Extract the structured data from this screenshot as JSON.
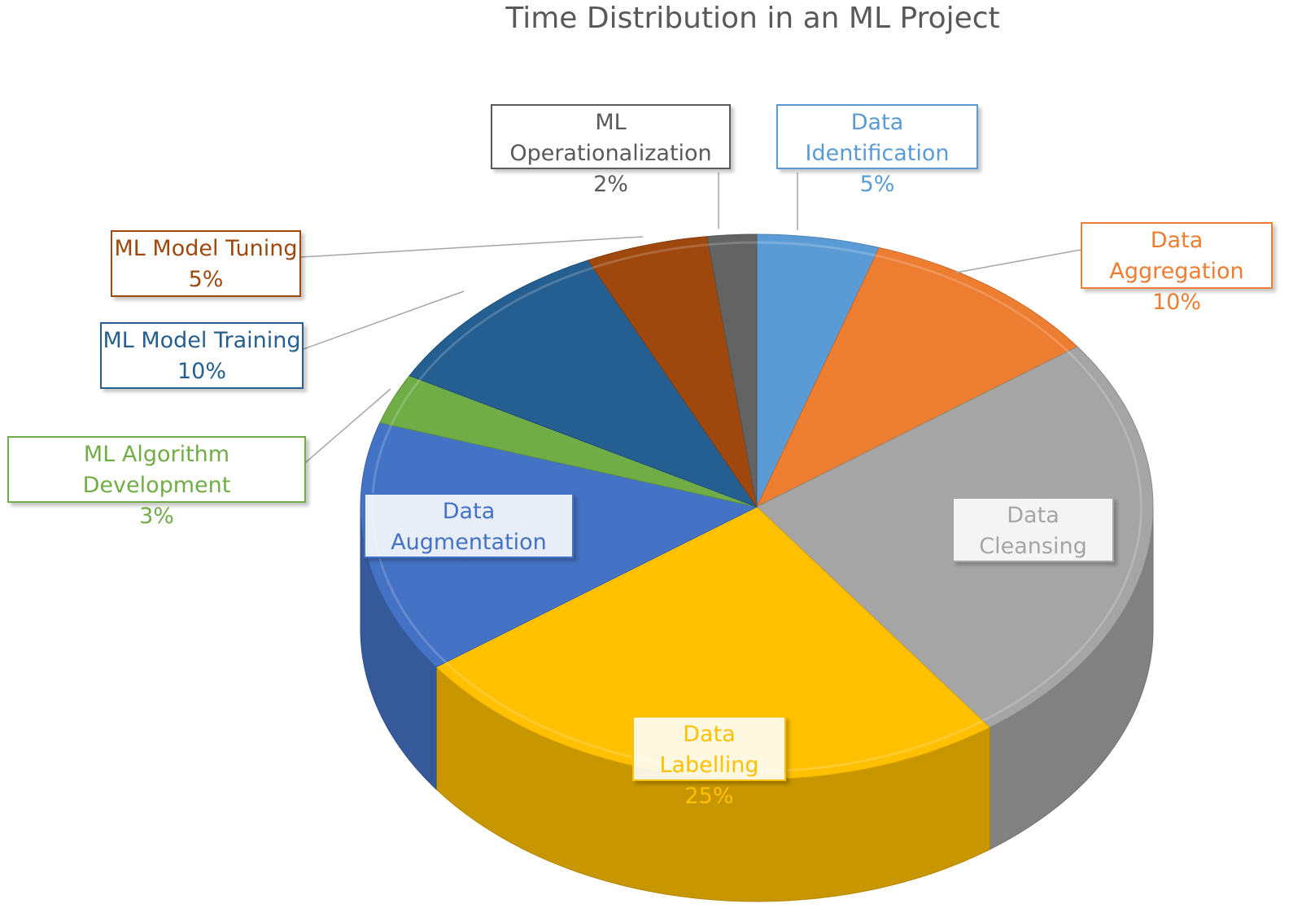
{
  "chart_data": {
    "type": "pie",
    "title": "Time Distribution in an ML Project",
    "slices": [
      {
        "name": "Data Identification",
        "value": 5,
        "label": "5%",
        "color": "#5b9bd5",
        "label_color": "#5b9bd5"
      },
      {
        "name": "Data Aggregation",
        "value": 10,
        "label": "10%",
        "color": "#ed7d31",
        "label_color": "#ed7d31"
      },
      {
        "name": "Data Cleansing",
        "value": 25,
        "label": "25%",
        "color": "#a5a5a5",
        "label_color": "#a5a5a5"
      },
      {
        "name": "Data Labelling",
        "value": 25,
        "label": "25%",
        "color": "#ffc000",
        "label_color": "#ffc000"
      },
      {
        "name": "Data Augmentation",
        "value": 15,
        "label": "15%",
        "color": "#4472c4",
        "label_color": "#4472c4"
      },
      {
        "name": "ML Algorithm Development",
        "value": 3,
        "label": "3%",
        "color": "#70ad47",
        "label_color": "#70ad47"
      },
      {
        "name": "ML Model Training",
        "value": 10,
        "label": "10%",
        "color": "#255e91",
        "label_color": "#255e91"
      },
      {
        "name": "ML Model Tuning",
        "value": 5,
        "label": "5%",
        "color": "#9e480e",
        "label_color": "#9e480e"
      },
      {
        "name": "ML Operationalization",
        "value": 2,
        "label": "2%",
        "color": "#636363",
        "label_color": "#595959"
      }
    ],
    "style": "3d-pie",
    "data_labels": "callout boxes with leader lines"
  }
}
